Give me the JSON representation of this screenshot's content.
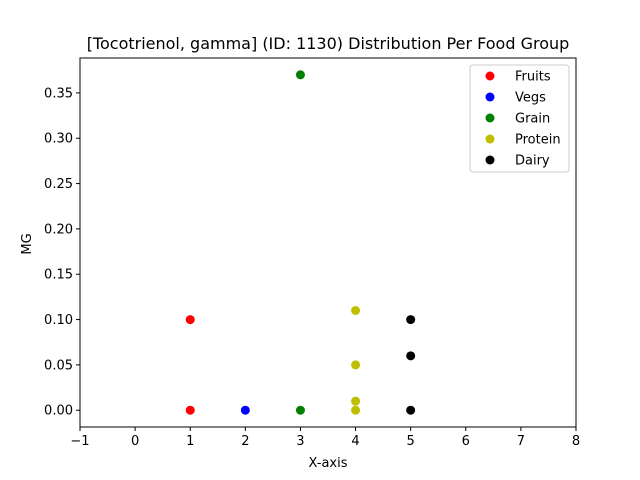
{
  "chart_data": {
    "type": "scatter",
    "title": "[Tocotrienol, gamma] (ID: 1130) Distribution Per Food Group",
    "xlabel": "X-axis",
    "ylabel": "MG",
    "xlim": [
      -1,
      8
    ],
    "ylim": [
      -0.0185,
      0.3885
    ],
    "xticks": [
      -1,
      0,
      1,
      2,
      3,
      4,
      5,
      6,
      7,
      8
    ],
    "yticks": [
      0.0,
      0.05,
      0.1,
      0.15,
      0.2,
      0.25,
      0.3,
      0.35
    ],
    "ytick_labels": [
      "0.00",
      "0.05",
      "0.10",
      "0.15",
      "0.20",
      "0.25",
      "0.30",
      "0.35"
    ],
    "grid": false,
    "legend_position": "top-right",
    "series": [
      {
        "name": "Fruits",
        "color": "#ff0000",
        "points": [
          [
            1,
            0.0
          ],
          [
            1,
            0.1
          ]
        ]
      },
      {
        "name": "Vegs",
        "color": "#0000ff",
        "points": [
          [
            2,
            0.0
          ]
        ]
      },
      {
        "name": "Grain",
        "color": "#008000",
        "points": [
          [
            3,
            0.0
          ],
          [
            3,
            0.37
          ]
        ]
      },
      {
        "name": "Protein",
        "color": "#bfbf00",
        "points": [
          [
            4,
            0.0
          ],
          [
            4,
            0.01
          ],
          [
            4,
            0.05
          ],
          [
            4,
            0.11
          ]
        ]
      },
      {
        "name": "Dairy",
        "color": "#000000",
        "points": [
          [
            5,
            0.0
          ],
          [
            5,
            0.06
          ],
          [
            5,
            0.1
          ]
        ]
      }
    ]
  }
}
